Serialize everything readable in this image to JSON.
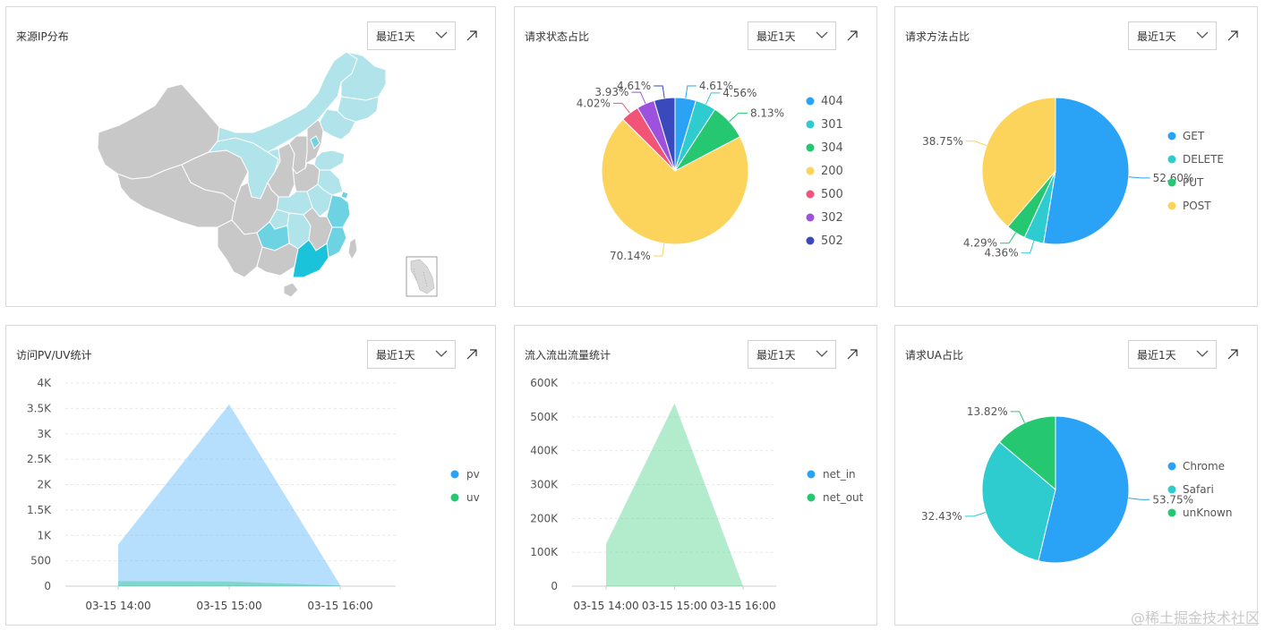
{
  "watermark": "@稀土掘金技术社区",
  "cards": [
    {
      "title": "来源IP分布",
      "range_label": "最近1天",
      "chart_data": {
        "type": "map",
        "region": "China provinces",
        "colors": {
          "none": "#c8c8c8",
          "low": "#b0e3ea",
          "medium": "#6dd3e3",
          "high": "#1bc3da"
        }
      }
    },
    {
      "title": "请求状态占比",
      "range_label": "最近1天",
      "chart_data": {
        "type": "pie",
        "legend": [
          "404",
          "301",
          "304",
          "200",
          "500",
          "302",
          "502"
        ],
        "slices": [
          {
            "name": "404",
            "value": 4.61,
            "label": "4.61%",
            "color": "#2aa2f5"
          },
          {
            "name": "301",
            "value": 4.56,
            "label": "4.56%",
            "color": "#2ecbcf"
          },
          {
            "name": "304",
            "value": 8.13,
            "label": "8.13%",
            "color": "#26c771"
          },
          {
            "name": "200",
            "value": 70.14,
            "label": "70.14%",
            "color": "#fdd45b"
          },
          {
            "name": "500",
            "value": 4.02,
            "label": "4.02%",
            "color": "#f25477"
          },
          {
            "name": "302",
            "value": 3.93,
            "label": "3.93%",
            "color": "#9c52dd"
          },
          {
            "name": "502",
            "value": 4.61,
            "label": "4.61%",
            "color": "#3a4abd"
          }
        ]
      }
    },
    {
      "title": "请求方法占比",
      "range_label": "最近1天",
      "chart_data": {
        "type": "pie",
        "legend": [
          "GET",
          "DELETE",
          "PUT",
          "POST"
        ],
        "slices": [
          {
            "name": "GET",
            "value": 52.6,
            "label": "52.60%",
            "color": "#2aa2f5"
          },
          {
            "name": "DELETE",
            "value": 4.36,
            "label": "4.36%",
            "color": "#2ecbcf"
          },
          {
            "name": "PUT",
            "value": 4.29,
            "label": "4.29%",
            "color": "#26c771"
          },
          {
            "name": "POST",
            "value": 38.75,
            "label": "38.75%",
            "color": "#fdd45b"
          }
        ]
      }
    },
    {
      "title": "访问PV/UV统计",
      "range_label": "最近1天",
      "chart_data": {
        "type": "area",
        "categories": [
          "03-15 14:00",
          "03-15 15:00",
          "03-15 16:00"
        ],
        "y_ticks": [
          "0",
          "500",
          "1K",
          "1.5K",
          "2K",
          "2.5K",
          "3K",
          "3.5K",
          "4K"
        ],
        "ylim": [
          0,
          4000
        ],
        "series": [
          {
            "name": "pv",
            "values": [
              820,
              3580,
              20
            ],
            "color": "#2aa2f5"
          },
          {
            "name": "uv",
            "values": [
              100,
              90,
              10
            ],
            "color": "#26c771"
          }
        ]
      }
    },
    {
      "title": "流入流出流量统计",
      "range_label": "最近1天",
      "chart_data": {
        "type": "area",
        "categories": [
          "03-15 14:00",
          "03-15 15:00",
          "03-15 16:00"
        ],
        "y_ticks": [
          "0",
          "100K",
          "200K",
          "300K",
          "400K",
          "500K",
          "600K"
        ],
        "ylim": [
          0,
          600000
        ],
        "series": [
          {
            "name": "net_in",
            "values": [
              0,
              0,
              0
            ],
            "color": "#2aa2f5"
          },
          {
            "name": "net_out",
            "values": [
              125000,
              540000,
              0
            ],
            "color": "#26c771"
          }
        ]
      }
    },
    {
      "title": "请求UA占比",
      "range_label": "最近1天",
      "chart_data": {
        "type": "pie",
        "legend": [
          "Chrome",
          "Safari",
          "unKnown"
        ],
        "slices": [
          {
            "name": "Chrome",
            "value": 53.75,
            "label": "53.75%",
            "color": "#2aa2f5"
          },
          {
            "name": "Safari",
            "value": 32.43,
            "label": "32.43%",
            "color": "#2ecbcf"
          },
          {
            "name": "unKnown",
            "value": 13.82,
            "label": "13.82%",
            "color": "#26c771"
          }
        ]
      }
    }
  ]
}
